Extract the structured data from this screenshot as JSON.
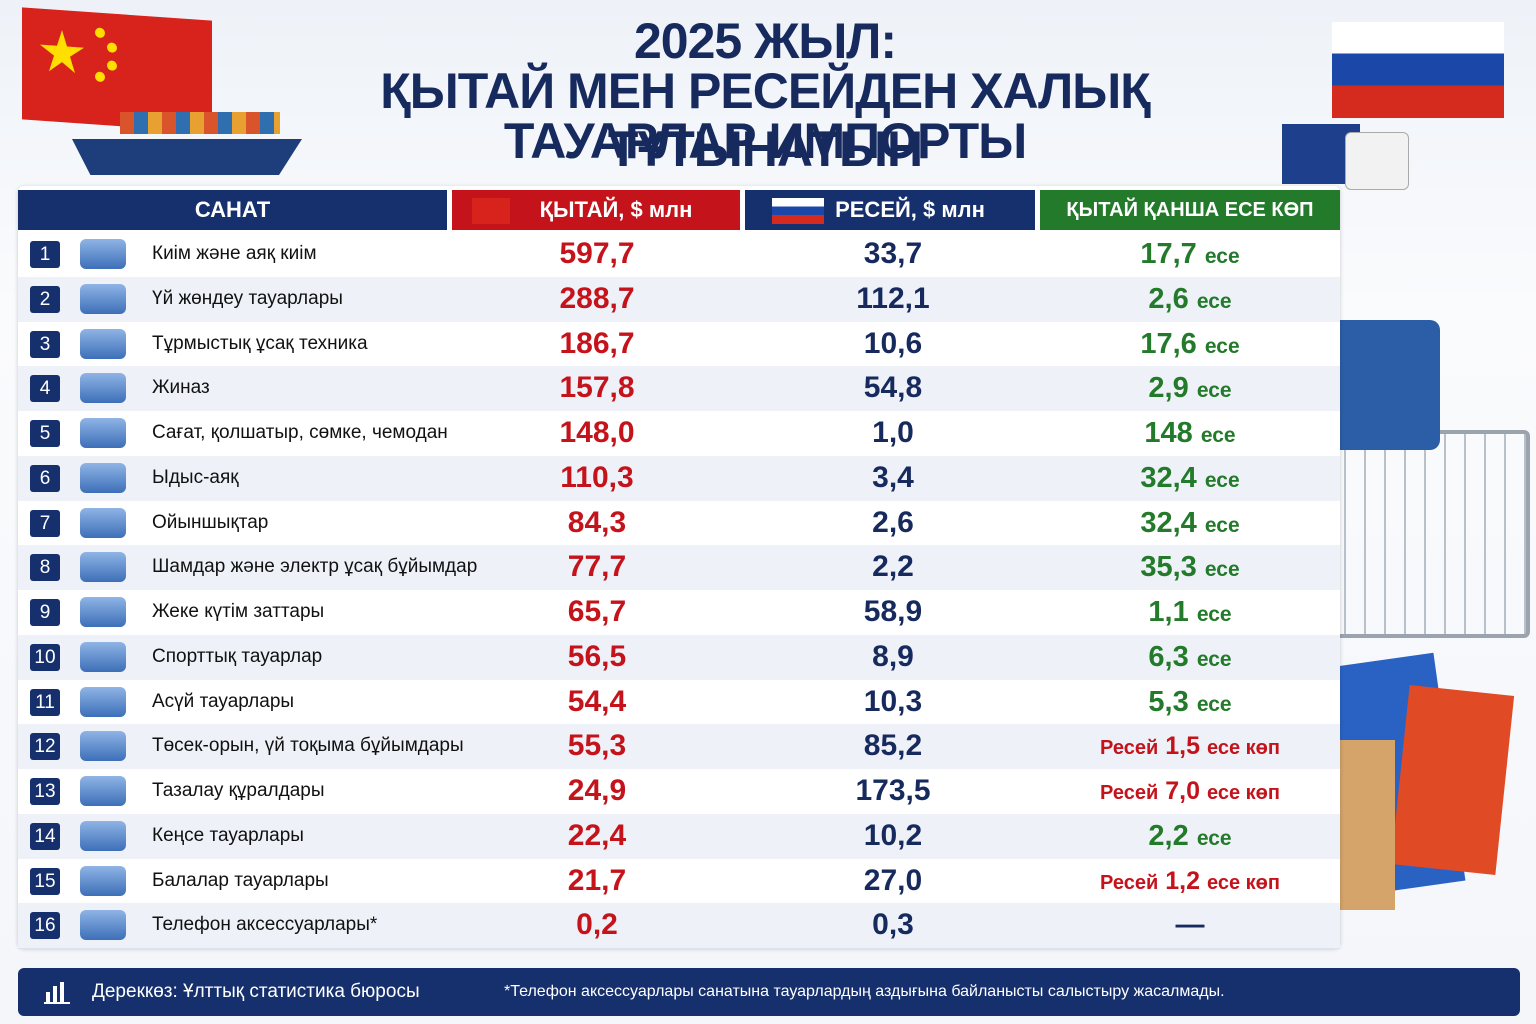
{
  "header": {
    "title": [
      "2025 ЖЫЛ:",
      "ҚЫТАЙ МЕН РЕСЕЙДЕН ХАЛЫҚ ТҰТЫНАТЫН",
      "ТАУАРЛАР ИМПОРТЫ"
    ]
  },
  "table": {
    "columns": [
      "САНАТ",
      "ҚЫТАЙ, $ млн",
      "РЕСЕЙ, $ млн",
      "ҚЫТАЙ ҚАНША ЕСЕ КӨП"
    ],
    "rows": [
      {
        "no": "1",
        "category": "Киім және аяқ киім",
        "china": "597,7",
        "russia": "33,7",
        "ratio": {
          "value": "17,7",
          "unit": "есе"
        }
      },
      {
        "no": "2",
        "category": "Үй жөндеу тауарлары",
        "china": "288,7",
        "russia": "112,1",
        "ratio": {
          "value": "2,6",
          "unit": "есе"
        }
      },
      {
        "no": "3",
        "category": "Тұрмыстық ұсақ техника",
        "china": "186,7",
        "russia": "10,6",
        "ratio": {
          "value": "17,6",
          "unit": "есе"
        }
      },
      {
        "no": "4",
        "category": "Жиназ",
        "china": "157,8",
        "russia": "54,8",
        "ratio": {
          "value": "2,9",
          "unit": "есе"
        }
      },
      {
        "no": "5",
        "category": "Сағат, қолшатыр, сөмке, чемодан",
        "china": "148,0",
        "russia": "1,0",
        "ratio": {
          "value": "148",
          "unit": "есе"
        }
      },
      {
        "no": "6",
        "category": "Ыдыс-аяқ",
        "china": "110,3",
        "russia": "3,4",
        "ratio": {
          "value": "32,4",
          "unit": "есе"
        }
      },
      {
        "no": "7",
        "category": "Ойыншықтар",
        "china": "84,3",
        "russia": "2,6",
        "ratio": {
          "value": "32,4",
          "unit": "есе"
        }
      },
      {
        "no": "8",
        "category": "Шамдар және электр ұсақ бұйымдар",
        "china": "77,7",
        "russia": "2,2",
        "ratio": {
          "value": "35,3",
          "unit": "есе"
        }
      },
      {
        "no": "9",
        "category": "Жеке күтім заттары",
        "china": "65,7",
        "russia": "58,9",
        "ratio": {
          "value": "1,1",
          "unit": "есе"
        }
      },
      {
        "no": "10",
        "category": "Спорттық тауарлар",
        "china": "56,5",
        "russia": "8,9",
        "ratio": {
          "value": "6,3",
          "unit": "есе"
        }
      },
      {
        "no": "11",
        "category": "Асүй тауарлары",
        "china": "54,4",
        "russia": "10,3",
        "ratio": {
          "value": "5,3",
          "unit": "есе"
        }
      },
      {
        "no": "12",
        "category": "Төсек-орын, үй тоқыма бұйымдары",
        "china": "55,3",
        "russia": "85,2",
        "ratio": {
          "lead": "Ресей",
          "value": "1,5",
          "unit": "есе көп"
        }
      },
      {
        "no": "13",
        "category": "Тазалау құралдары",
        "china": "24,9",
        "russia": "173,5",
        "ratio": {
          "lead": "Ресей",
          "value": "7,0",
          "unit": "есе көп"
        }
      },
      {
        "no": "14",
        "category": "Кеңсе тауарлары",
        "china": "22,4",
        "russia": "10,2",
        "ratio": {
          "value": "2,2",
          "unit": "есе"
        }
      },
      {
        "no": "15",
        "category": "Балалар тауарлары",
        "china": "21,7",
        "russia": "27,0",
        "ratio": {
          "lead": "Ресей",
          "value": "1,2",
          "unit": "есе көп"
        }
      },
      {
        "no": "16",
        "category": "Телефон аксессуарлары*",
        "china": "0,2",
        "russia": "0,3",
        "ratio": {
          "value": "—"
        }
      }
    ]
  },
  "footer": {
    "source": "Дереккөз: Ұлттық статистика бюросы",
    "note": "*Телефон аксессуарлары санатына тауарлардың аздығына байланысты салыстыру жасалмады."
  }
}
